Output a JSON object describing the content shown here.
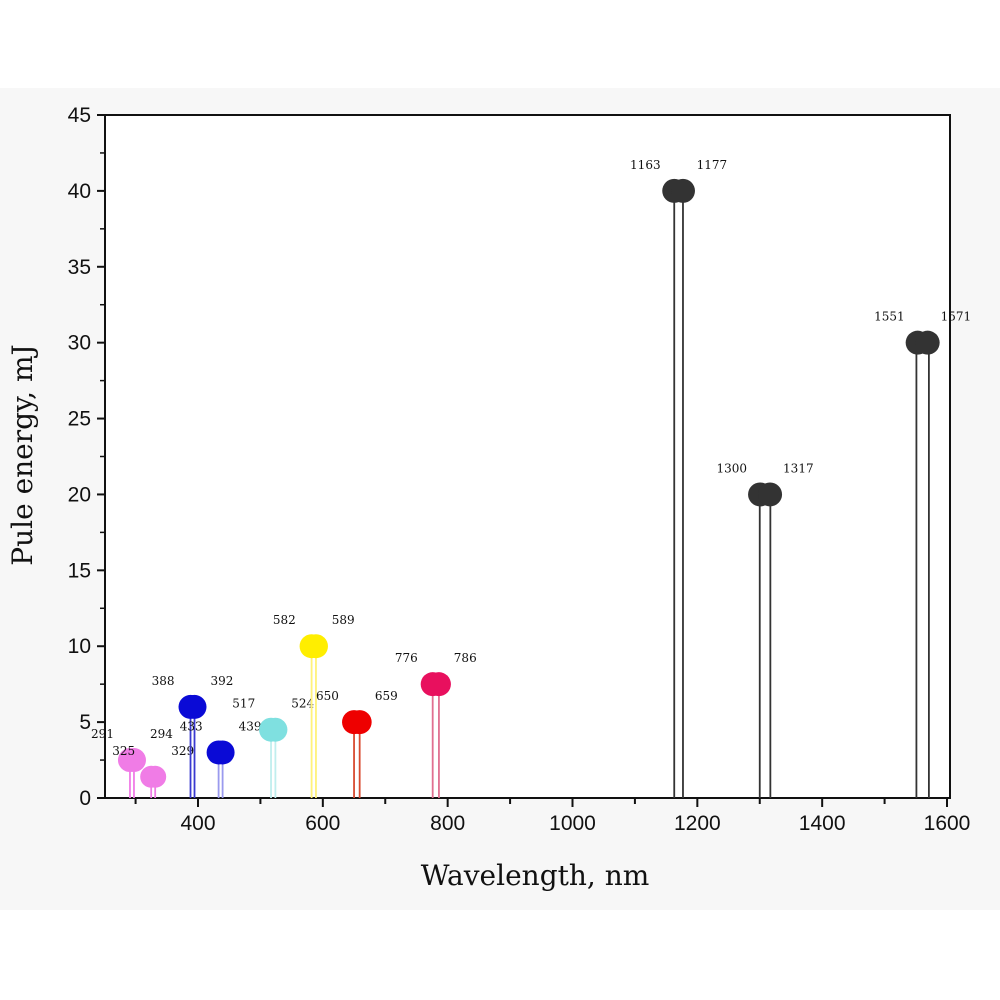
{
  "chart_data": {
    "type": "stem",
    "xlabel": "Wavelength, nm",
    "ylabel": "Pule energy, mJ",
    "xlim": [
      250,
      1605
    ],
    "ylim": [
      0,
      45
    ],
    "xticks": [
      400,
      600,
      800,
      1000,
      1200,
      1400,
      1600
    ],
    "yticks": [
      0,
      5,
      10,
      15,
      20,
      25,
      30,
      35,
      40,
      45
    ],
    "grid": false,
    "pairs": [
      {
        "labels": [
          "291",
          "294"
        ],
        "x": [
          291,
          294
        ],
        "y": 2.5,
        "color": "#f07ce6",
        "stem_color": "#f07ce6"
      },
      {
        "labels": [
          "325",
          "329"
        ],
        "x": [
          325,
          329
        ],
        "y": 1.4,
        "color": "#f07ce6",
        "stem_color": "#f07ce6"
      },
      {
        "labels": [
          "388",
          "392"
        ],
        "x": [
          388,
          392
        ],
        "y": 6,
        "color": "#0a0ad6",
        "stem_color": "#3a3ad0"
      },
      {
        "labels": [
          "433",
          "439"
        ],
        "x": [
          433,
          439
        ],
        "y": 3,
        "color": "#0a0ad6",
        "stem_color": "#9a9aee"
      },
      {
        "labels": [
          "517",
          "524"
        ],
        "x": [
          517,
          524
        ],
        "y": 4.5,
        "color": "#7fe0e0",
        "stem_color": "#c0eeee"
      },
      {
        "labels": [
          "582",
          "589"
        ],
        "x": [
          582,
          589
        ],
        "y": 10,
        "color": "#ffee00",
        "stem_color": "#fff27a"
      },
      {
        "labels": [
          "650",
          "659"
        ],
        "x": [
          650,
          659
        ],
        "y": 5,
        "color": "#ee0000",
        "stem_color": "#d84a30"
      },
      {
        "labels": [
          "776",
          "786"
        ],
        "x": [
          776,
          786
        ],
        "y": 7.5,
        "color": "#e8105e",
        "stem_color": "#e07090"
      },
      {
        "labels": [
          "1163",
          "1177"
        ],
        "x": [
          1163,
          1177
        ],
        "y": 40,
        "color": "#333333",
        "stem_color": "#333333"
      },
      {
        "labels": [
          "1300",
          "1317"
        ],
        "x": [
          1300,
          1317
        ],
        "y": 20,
        "color": "#333333",
        "stem_color": "#333333"
      },
      {
        "labels": [
          "1551",
          "1571"
        ],
        "x": [
          1551,
          1571
        ],
        "y": 30,
        "color": "#333333",
        "stem_color": "#333333"
      }
    ]
  }
}
